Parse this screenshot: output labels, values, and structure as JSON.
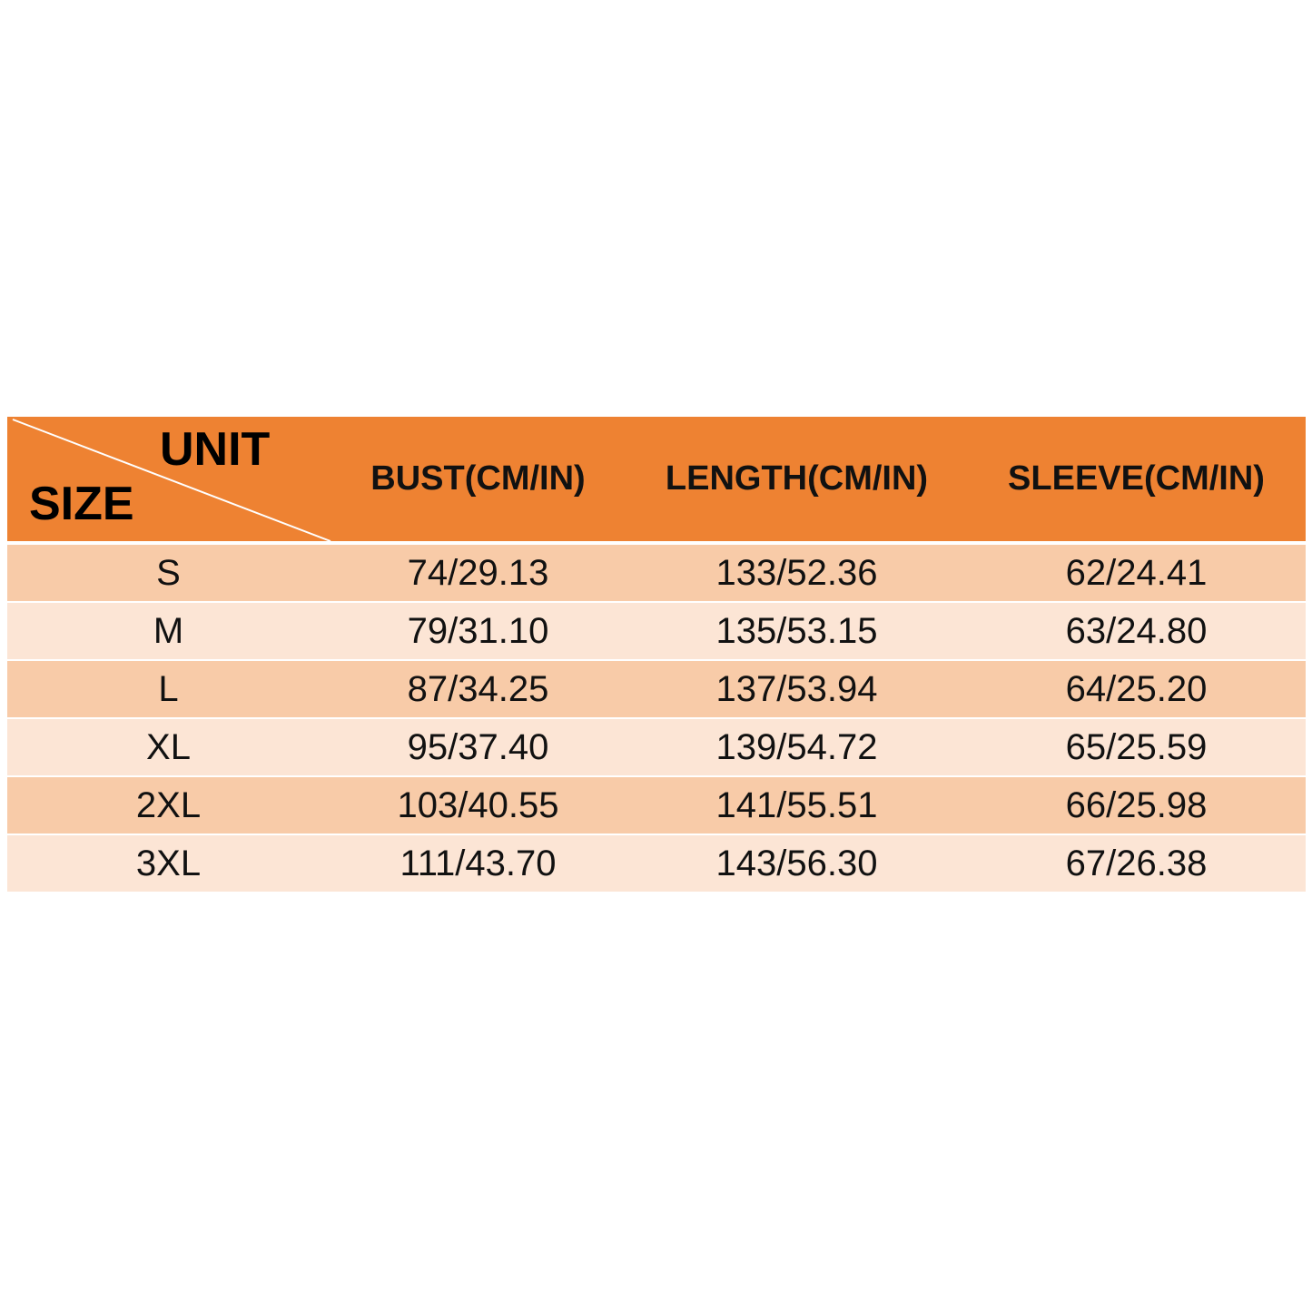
{
  "header": {
    "unit": "UNIT",
    "size": "SIZE",
    "columns": [
      "BUST(CM/IN)",
      "LENGTH(CM/IN)",
      "SLEEVE(CM/IN)"
    ]
  },
  "table": {
    "rows": [
      [
        "S",
        "74/29.13",
        "133/52.36",
        "62/24.41"
      ],
      [
        "M",
        "79/31.10",
        "135/53.15",
        "63/24.80"
      ],
      [
        "L",
        "87/34.25",
        "137/53.94",
        "64/25.20"
      ],
      [
        "XL",
        "95/37.40",
        "139/54.72",
        "65/25.59"
      ],
      [
        "2XL",
        "103/40.55",
        "141/55.51",
        "66/25.98"
      ],
      [
        "3XL",
        "111/43.70",
        "143/56.30",
        "67/26.38"
      ]
    ]
  }
}
